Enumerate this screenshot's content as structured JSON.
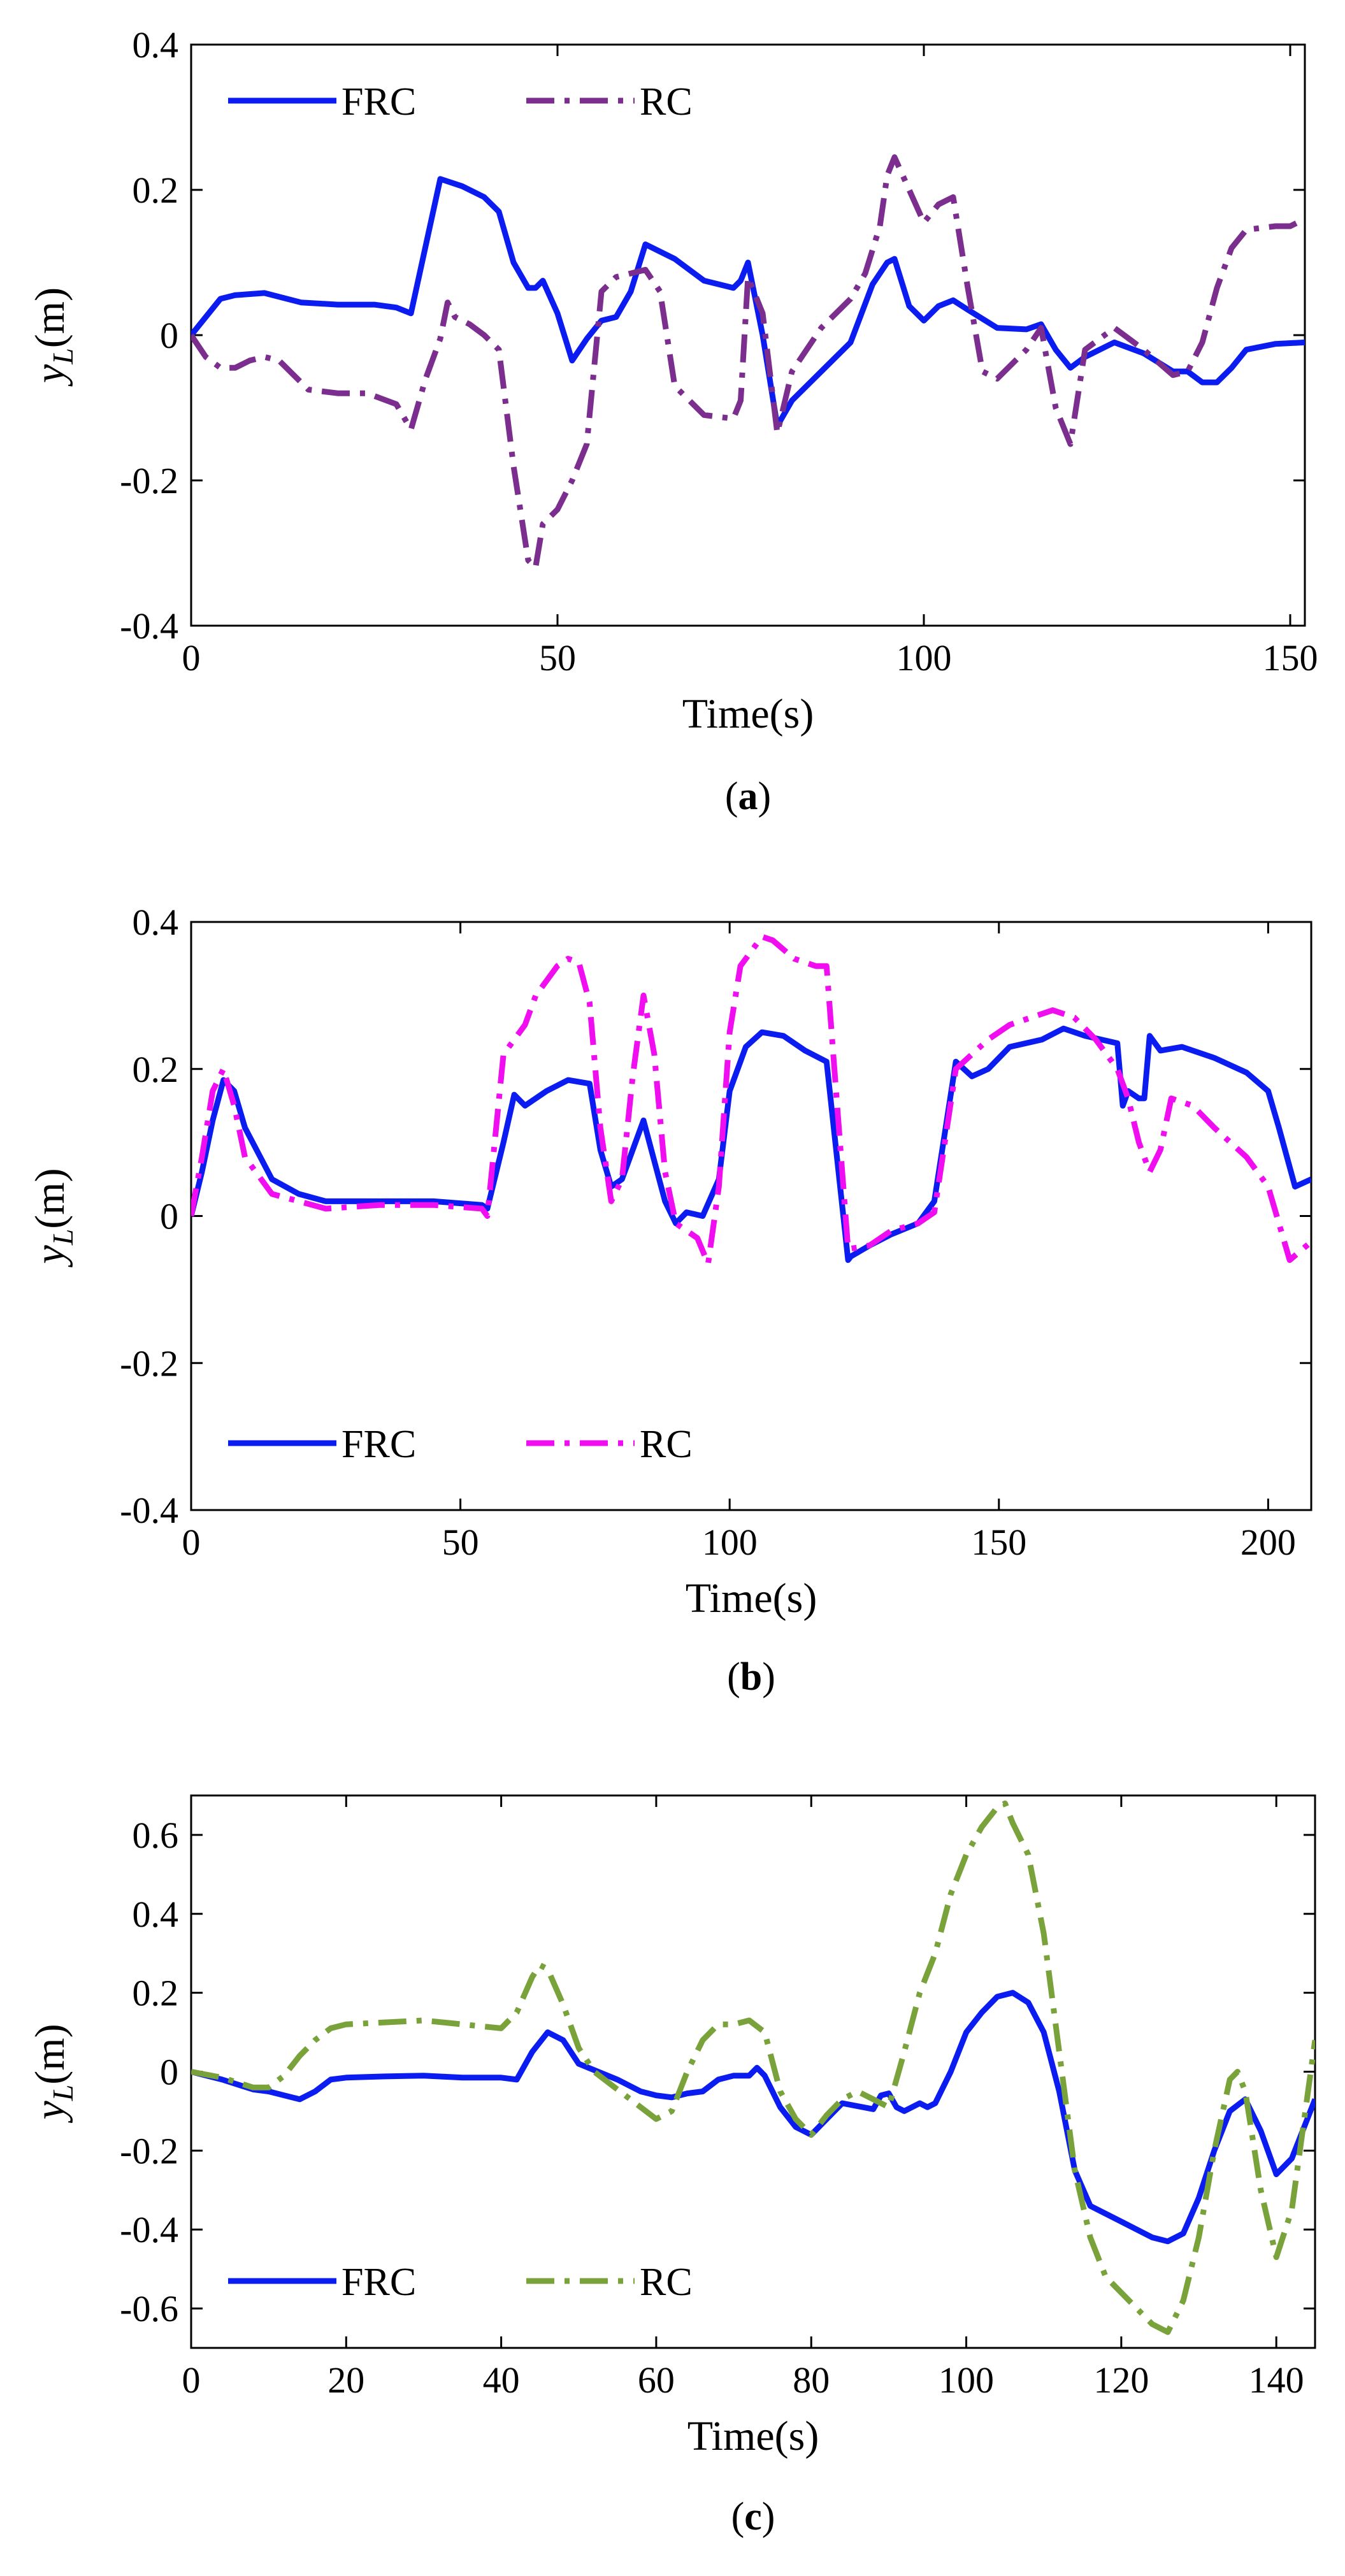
{
  "chart_data": [
    {
      "type": "line",
      "caption": "(a)",
      "caption_letter": "a",
      "xlabel": "Time(s)",
      "ylabel": "y",
      "ylabel_sub": "L",
      "ylabel_unit": "(m)",
      "xlim": [
        0,
        152
      ],
      "ylim": [
        -0.4,
        0.4
      ],
      "xticks": [
        0,
        50,
        100,
        150
      ],
      "yticks": [
        -0.4,
        -0.2,
        0,
        0.2,
        0.4
      ],
      "xtick_labels": [
        "0",
        "50",
        "100",
        "150"
      ],
      "ytick_labels": [
        "-0.4",
        "-0.2",
        "0",
        "0.2",
        "0.4"
      ],
      "legend": {
        "position": "top-left",
        "entries": [
          "FRC",
          "RC"
        ]
      },
      "series": [
        {
          "name": "FRC",
          "color": "#0a1cf0",
          "dash": "solid",
          "x": [
            0,
            2,
            4,
            6,
            10,
            15,
            20,
            25,
            28,
            30,
            34,
            37,
            40,
            42,
            44,
            46,
            47,
            48,
            50,
            52,
            54,
            56,
            58,
            60,
            62,
            66,
            70,
            74,
            75,
            76,
            78,
            80,
            82,
            86,
            90,
            93,
            95,
            96,
            98,
            100,
            102,
            104,
            106,
            110,
            114,
            116,
            118,
            120,
            122,
            126,
            130,
            134,
            136,
            138,
            140,
            142,
            144,
            148,
            152
          ],
          "y": [
            0,
            0.025,
            0.05,
            0.055,
            0.058,
            0.045,
            0.042,
            0.042,
            0.038,
            0.03,
            0.215,
            0.205,
            0.19,
            0.17,
            0.1,
            0.065,
            0.065,
            0.075,
            0.03,
            -0.035,
            -0.005,
            0.02,
            0.025,
            0.06,
            0.125,
            0.105,
            0.075,
            0.065,
            0.075,
            0.1,
            0.0,
            -0.125,
            -0.09,
            -0.05,
            -0.01,
            0.07,
            0.1,
            0.105,
            0.04,
            0.02,
            0.04,
            0.048,
            0.035,
            0.01,
            0.008,
            0.015,
            -0.02,
            -0.045,
            -0.03,
            -0.01,
            -0.025,
            -0.05,
            -0.05,
            -0.065,
            -0.065,
            -0.045,
            -0.02,
            -0.012,
            -0.01
          ]
        },
        {
          "name": "RC",
          "color": "#7b2e8e",
          "dash": "dashdot",
          "x": [
            0,
            2,
            4,
            6,
            8,
            10,
            12,
            14,
            16,
            20,
            24,
            28,
            30,
            32,
            34,
            35,
            36,
            38,
            40,
            42,
            44,
            46,
            47,
            48,
            50,
            52,
            54,
            56,
            58,
            60,
            62,
            64,
            66,
            70,
            74,
            75,
            76,
            78,
            80,
            82,
            86,
            90,
            92,
            94,
            95,
            96,
            98,
            100,
            102,
            104,
            106,
            108,
            110,
            114,
            116,
            118,
            120,
            122,
            126,
            130,
            134,
            136,
            138,
            140,
            142,
            144,
            148,
            150,
            152
          ],
          "y": [
            0,
            -0.03,
            -0.045,
            -0.045,
            -0.035,
            -0.03,
            -0.035,
            -0.055,
            -0.075,
            -0.08,
            -0.08,
            -0.095,
            -0.13,
            -0.06,
            -0.005,
            0.045,
            0.025,
            0.015,
            0.0,
            -0.02,
            -0.18,
            -0.31,
            -0.32,
            -0.26,
            -0.24,
            -0.2,
            -0.15,
            0.06,
            0.08,
            0.085,
            0.09,
            0.06,
            -0.07,
            -0.11,
            -0.115,
            -0.09,
            0.08,
            0.03,
            -0.135,
            -0.05,
            0.01,
            0.05,
            0.085,
            0.15,
            0.22,
            0.245,
            0.2,
            0.155,
            0.18,
            0.19,
            0.065,
            -0.05,
            -0.06,
            -0.02,
            0.01,
            -0.1,
            -0.15,
            -0.02,
            0.01,
            -0.02,
            -0.055,
            -0.05,
            -0.01,
            0.065,
            0.12,
            0.145,
            0.15,
            0.15,
            0.16
          ]
        }
      ]
    },
    {
      "type": "line",
      "caption": "(b)",
      "caption_letter": "b",
      "xlabel": "Time(s)",
      "ylabel": "y",
      "ylabel_sub": "L",
      "ylabel_unit": "(m)",
      "xlim": [
        0,
        208
      ],
      "ylim": [
        -0.4,
        0.4
      ],
      "xticks": [
        0,
        50,
        100,
        150,
        200
      ],
      "yticks": [
        -0.4,
        -0.2,
        0,
        0.2,
        0.4
      ],
      "xtick_labels": [
        "0",
        "50",
        "100",
        "150",
        "200"
      ],
      "ytick_labels": [
        "-0.4",
        "-0.2",
        "0",
        "0.2",
        "0.4"
      ],
      "legend": {
        "position": "bottom-left",
        "entries": [
          "FRC",
          "RC"
        ]
      },
      "series": [
        {
          "name": "FRC",
          "color": "#0a1cf0",
          "dash": "solid",
          "x": [
            0,
            2,
            4,
            6,
            8,
            10,
            15,
            20,
            25,
            35,
            45,
            54,
            55,
            58,
            60,
            62,
            66,
            70,
            74,
            76,
            78,
            80,
            84,
            86,
            88,
            90,
            92,
            95,
            98,
            100,
            103,
            106,
            110,
            114,
            118,
            122,
            122.5,
            126,
            130,
            135,
            138,
            142,
            145,
            148,
            152,
            158,
            162,
            166,
            172,
            173,
            174,
            176,
            177,
            178,
            180,
            184,
            190,
            196,
            200,
            202,
            205,
            208
          ],
          "y": [
            0,
            0.06,
            0.13,
            0.185,
            0.17,
            0.12,
            0.05,
            0.03,
            0.02,
            0.02,
            0.02,
            0.015,
            0.01,
            0.1,
            0.165,
            0.15,
            0.17,
            0.185,
            0.18,
            0.09,
            0.04,
            0.05,
            0.13,
            0.075,
            0.02,
            -0.01,
            0.005,
            0.0,
            0.05,
            0.17,
            0.23,
            0.25,
            0.245,
            0.225,
            0.21,
            -0.06,
            -0.055,
            -0.04,
            -0.025,
            -0.01,
            0.02,
            0.21,
            0.19,
            0.2,
            0.23,
            0.24,
            0.255,
            0.245,
            0.235,
            0.15,
            0.17,
            0.16,
            0.16,
            0.245,
            0.225,
            0.23,
            0.215,
            0.195,
            0.17,
            0.12,
            0.04,
            0.05
          ]
        },
        {
          "name": "RC",
          "color": "#f00ef0",
          "dash": "dashdot",
          "x": [
            0,
            2,
            4,
            6,
            8,
            10,
            15,
            20,
            25,
            35,
            45,
            54,
            55,
            58,
            60,
            62,
            64,
            66,
            68,
            70,
            72,
            74,
            76,
            78,
            80,
            82,
            84,
            86,
            88,
            90,
            92,
            94,
            96,
            98,
            100,
            102,
            104,
            106,
            108,
            112,
            116,
            118,
            122,
            126,
            130,
            135,
            138,
            142,
            145,
            148,
            152,
            156,
            160,
            164,
            168,
            172,
            174,
            176,
            178,
            180,
            182,
            186,
            190,
            196,
            200,
            204,
            208
          ],
          "y": [
            0,
            0.08,
            0.17,
            0.2,
            0.15,
            0.08,
            0.03,
            0.02,
            0.01,
            0.015,
            0.015,
            0.01,
            0.0,
            0.22,
            0.24,
            0.26,
            0.3,
            0.32,
            0.34,
            0.35,
            0.345,
            0.29,
            0.12,
            0.02,
            0.05,
            0.19,
            0.3,
            0.22,
            0.06,
            -0.01,
            -0.02,
            -0.03,
            -0.065,
            0.04,
            0.25,
            0.34,
            0.36,
            0.38,
            0.375,
            0.35,
            0.34,
            0.34,
            -0.045,
            -0.04,
            -0.02,
            -0.01,
            0.005,
            0.2,
            0.22,
            0.24,
            0.26,
            0.27,
            0.28,
            0.27,
            0.24,
            0.2,
            0.16,
            0.1,
            0.06,
            0.09,
            0.16,
            0.15,
            0.12,
            0.08,
            0.04,
            -0.06,
            -0.035
          ]
        }
      ]
    },
    {
      "type": "line",
      "caption": "(c)",
      "caption_letter": "c",
      "xlabel": "Time(s)",
      "ylabel": "y",
      "ylabel_sub": "L",
      "ylabel_unit": "(m)",
      "xlim": [
        0,
        145
      ],
      "ylim": [
        -0.7,
        0.7
      ],
      "xticks": [
        0,
        20,
        40,
        60,
        80,
        100,
        120,
        140
      ],
      "yticks": [
        -0.6,
        -0.4,
        -0.2,
        0,
        0.2,
        0.4,
        0.6
      ],
      "xtick_labels": [
        "0",
        "20",
        "40",
        "60",
        "80",
        "100",
        "120",
        "140"
      ],
      "ytick_labels": [
        "-0.6",
        "-0.4",
        "-0.2",
        "0",
        "0.2",
        "0.4",
        "0.6"
      ],
      "legend": {
        "position": "bottom-left",
        "entries": [
          "FRC",
          "RC"
        ]
      },
      "series": [
        {
          "name": "FRC",
          "color": "#0a1cf0",
          "dash": "solid",
          "x": [
            0,
            4,
            8,
            10,
            12,
            14,
            16,
            18,
            20,
            25,
            30,
            35,
            40,
            42,
            44,
            46,
            48,
            50,
            55,
            58,
            60,
            62,
            64,
            66,
            68,
            70,
            72,
            73,
            74,
            76,
            78,
            80,
            84,
            88,
            89,
            90,
            91,
            92,
            94,
            95,
            96,
            98,
            100,
            102,
            104,
            106,
            108,
            110,
            112,
            114,
            116,
            120,
            124,
            126,
            128,
            130,
            132,
            134,
            136,
            138,
            140,
            142,
            145
          ],
          "y": [
            0,
            -0.02,
            -0.045,
            -0.05,
            -0.06,
            -0.07,
            -0.05,
            -0.02,
            -0.015,
            -0.012,
            -0.01,
            -0.015,
            -0.015,
            -0.02,
            0.05,
            0.1,
            0.08,
            0.02,
            -0.02,
            -0.05,
            -0.06,
            -0.065,
            -0.055,
            -0.05,
            -0.02,
            -0.01,
            -0.01,
            0.01,
            -0.01,
            -0.09,
            -0.14,
            -0.16,
            -0.08,
            -0.095,
            -0.06,
            -0.055,
            -0.09,
            -0.1,
            -0.08,
            -0.09,
            -0.08,
            0.0,
            0.1,
            0.15,
            0.19,
            0.2,
            0.175,
            0.1,
            -0.05,
            -0.25,
            -0.34,
            -0.38,
            -0.42,
            -0.43,
            -0.41,
            -0.32,
            -0.2,
            -0.1,
            -0.07,
            -0.15,
            -0.26,
            -0.22,
            -0.07
          ]
        },
        {
          "name": "RC",
          "color": "#79a33a",
          "dash": "dashdot",
          "x": [
            0,
            4,
            8,
            10,
            12,
            14,
            16,
            18,
            20,
            25,
            30,
            35,
            40,
            42,
            44,
            45,
            46,
            48,
            50,
            52,
            56,
            60,
            62,
            64,
            66,
            68,
            70,
            72,
            74,
            76,
            78,
            80,
            82,
            84,
            86,
            88,
            90,
            92,
            94,
            96,
            98,
            100,
            102,
            104,
            105,
            106,
            108,
            110,
            112,
            114,
            116,
            118,
            120,
            122,
            124,
            126,
            128,
            130,
            132,
            134,
            135,
            136,
            138,
            140,
            142,
            145
          ],
          "y": [
            0,
            -0.015,
            -0.04,
            -0.04,
            -0.01,
            0.04,
            0.08,
            0.11,
            0.12,
            0.125,
            0.13,
            0.12,
            0.11,
            0.15,
            0.24,
            0.27,
            0.26,
            0.17,
            0.06,
            0.0,
            -0.06,
            -0.12,
            -0.1,
            0.0,
            0.08,
            0.12,
            0.12,
            0.13,
            0.1,
            -0.05,
            -0.12,
            -0.16,
            -0.11,
            -0.07,
            -0.05,
            -0.07,
            -0.09,
            0.05,
            0.2,
            0.3,
            0.45,
            0.55,
            0.62,
            0.67,
            0.68,
            0.63,
            0.55,
            0.35,
            0.05,
            -0.25,
            -0.42,
            -0.52,
            -0.56,
            -0.6,
            -0.64,
            -0.66,
            -0.58,
            -0.42,
            -0.2,
            -0.02,
            0.0,
            -0.05,
            -0.3,
            -0.47,
            -0.35,
            0.08
          ]
        }
      ]
    }
  ]
}
